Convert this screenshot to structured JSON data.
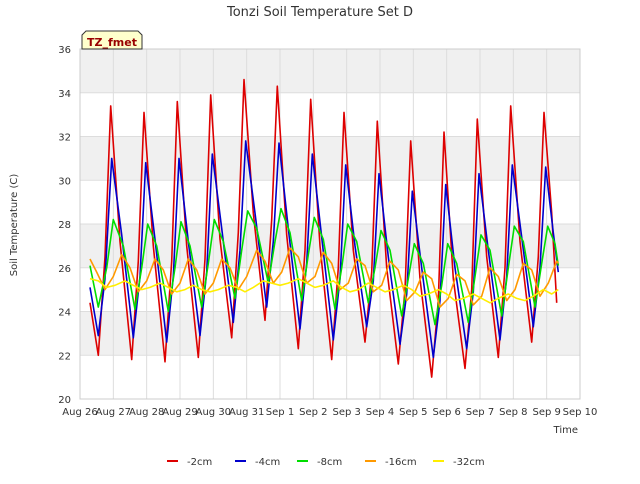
{
  "chart_data": {
    "type": "line",
    "title": "Tonzi Soil Temperature Set D",
    "xlabel": "Time",
    "ylabel": "Soil Temperature (C)",
    "badge": "TZ_fmet",
    "xlim": [
      0,
      15
    ],
    "ylim": [
      20,
      36
    ],
    "yticks": [
      20,
      22,
      24,
      26,
      28,
      30,
      32,
      34,
      36
    ],
    "xticks": [
      {
        "x": 0,
        "label": "Aug 26"
      },
      {
        "x": 1,
        "label": "Aug 27"
      },
      {
        "x": 2,
        "label": "Aug 28"
      },
      {
        "x": 3,
        "label": "Aug 29"
      },
      {
        "x": 4,
        "label": "Aug 30"
      },
      {
        "x": 5,
        "label": "Aug 31"
      },
      {
        "x": 6,
        "label": "Sep 1"
      },
      {
        "x": 7,
        "label": "Sep 2"
      },
      {
        "x": 8,
        "label": "Sep 3"
      },
      {
        "x": 9,
        "label": "Sep 4"
      },
      {
        "x": 10,
        "label": "Sep 5"
      },
      {
        "x": 11,
        "label": "Sep 6"
      },
      {
        "x": 12,
        "label": "Sep 7"
      },
      {
        "x": 13,
        "label": "Sep 8"
      },
      {
        "x": 14,
        "label": "Sep 9"
      },
      {
        "x": 15,
        "label": "Sep 10"
      }
    ],
    "grid": true,
    "legend_position": "bottom",
    "series": [
      {
        "name": "-2cm",
        "color": "#dd0000",
        "points": [
          [
            0.3,
            24.4
          ],
          [
            0.55,
            22.0
          ],
          [
            0.75,
            26.5
          ],
          [
            0.92,
            33.4
          ],
          [
            1.2,
            27.2
          ],
          [
            1.55,
            21.8
          ],
          [
            1.75,
            26.3
          ],
          [
            1.92,
            33.1
          ],
          [
            2.2,
            27.0
          ],
          [
            2.55,
            21.7
          ],
          [
            2.75,
            26.3
          ],
          [
            2.92,
            33.6
          ],
          [
            3.2,
            27.0
          ],
          [
            3.55,
            21.9
          ],
          [
            3.75,
            26.4
          ],
          [
            3.92,
            33.9
          ],
          [
            4.2,
            27.3
          ],
          [
            4.55,
            22.8
          ],
          [
            4.75,
            27.6
          ],
          [
            4.92,
            34.6
          ],
          [
            5.2,
            28.5
          ],
          [
            5.55,
            23.6
          ],
          [
            5.75,
            28.2
          ],
          [
            5.92,
            34.3
          ],
          [
            6.2,
            27.5
          ],
          [
            6.55,
            22.3
          ],
          [
            6.75,
            26.8
          ],
          [
            6.92,
            33.7
          ],
          [
            7.2,
            27.0
          ],
          [
            7.55,
            21.8
          ],
          [
            7.75,
            26.0
          ],
          [
            7.92,
            33.1
          ],
          [
            8.2,
            26.8
          ],
          [
            8.55,
            22.6
          ],
          [
            8.75,
            25.8
          ],
          [
            8.92,
            32.7
          ],
          [
            9.2,
            26.0
          ],
          [
            9.55,
            21.6
          ],
          [
            9.75,
            25.0
          ],
          [
            9.92,
            31.8
          ],
          [
            10.2,
            25.5
          ],
          [
            10.55,
            21.0
          ],
          [
            10.75,
            24.5
          ],
          [
            10.92,
            32.2
          ],
          [
            11.2,
            25.5
          ],
          [
            11.55,
            21.4
          ],
          [
            11.75,
            25.0
          ],
          [
            11.92,
            32.8
          ],
          [
            12.2,
            26.5
          ],
          [
            12.55,
            21.9
          ],
          [
            12.75,
            26.0
          ],
          [
            12.92,
            33.4
          ],
          [
            13.2,
            27.2
          ],
          [
            13.55,
            22.6
          ],
          [
            13.75,
            26.5
          ],
          [
            13.92,
            33.1
          ],
          [
            14.15,
            28.5
          ],
          [
            14.3,
            24.4
          ]
        ]
      },
      {
        "name": "-4cm",
        "color": "#0000cc",
        "points": [
          [
            0.3,
            25.1
          ],
          [
            0.55,
            22.9
          ],
          [
            0.75,
            25.5
          ],
          [
            0.95,
            31.0
          ],
          [
            1.25,
            27.5
          ],
          [
            1.6,
            22.8
          ],
          [
            1.8,
            25.6
          ],
          [
            1.97,
            30.8
          ],
          [
            2.25,
            27.3
          ],
          [
            2.6,
            22.6
          ],
          [
            2.8,
            25.6
          ],
          [
            2.97,
            31.0
          ],
          [
            3.25,
            27.2
          ],
          [
            3.6,
            22.9
          ],
          [
            3.8,
            25.8
          ],
          [
            3.97,
            31.2
          ],
          [
            4.25,
            27.8
          ],
          [
            4.6,
            23.5
          ],
          [
            4.8,
            26.8
          ],
          [
            4.97,
            31.8
          ],
          [
            5.25,
            28.5
          ],
          [
            5.6,
            24.2
          ],
          [
            5.8,
            27.2
          ],
          [
            5.97,
            31.7
          ],
          [
            6.25,
            27.8
          ],
          [
            6.6,
            23.2
          ],
          [
            6.8,
            26.2
          ],
          [
            6.97,
            31.2
          ],
          [
            7.25,
            27.4
          ],
          [
            7.6,
            22.7
          ],
          [
            7.8,
            25.5
          ],
          [
            7.97,
            30.7
          ],
          [
            8.25,
            27.0
          ],
          [
            8.6,
            23.3
          ],
          [
            8.8,
            25.4
          ],
          [
            8.97,
            30.3
          ],
          [
            9.25,
            26.5
          ],
          [
            9.6,
            22.5
          ],
          [
            9.8,
            24.8
          ],
          [
            9.97,
            29.5
          ],
          [
            10.25,
            26.0
          ],
          [
            10.6,
            21.9
          ],
          [
            10.8,
            24.5
          ],
          [
            10.97,
            29.8
          ],
          [
            11.25,
            26.0
          ],
          [
            11.6,
            22.3
          ],
          [
            11.8,
            24.9
          ],
          [
            11.97,
            30.3
          ],
          [
            12.25,
            26.8
          ],
          [
            12.6,
            22.7
          ],
          [
            12.8,
            25.6
          ],
          [
            12.97,
            30.7
          ],
          [
            13.25,
            27.4
          ],
          [
            13.6,
            23.3
          ],
          [
            13.8,
            26.0
          ],
          [
            13.97,
            30.6
          ],
          [
            14.2,
            27.6
          ],
          [
            14.35,
            25.8
          ]
        ]
      },
      {
        "name": "-8cm",
        "color": "#00dd00",
        "points": [
          [
            0.3,
            26.1
          ],
          [
            0.55,
            24.2
          ],
          [
            0.8,
            26.0
          ],
          [
            1.0,
            28.2
          ],
          [
            1.3,
            27.0
          ],
          [
            1.65,
            24.1
          ],
          [
            1.85,
            26.0
          ],
          [
            2.03,
            28.0
          ],
          [
            2.3,
            27.0
          ],
          [
            2.65,
            24.0
          ],
          [
            2.85,
            26.0
          ],
          [
            3.03,
            28.1
          ],
          [
            3.3,
            27.0
          ],
          [
            3.65,
            24.2
          ],
          [
            3.85,
            26.2
          ],
          [
            4.03,
            28.2
          ],
          [
            4.3,
            27.2
          ],
          [
            4.65,
            24.6
          ],
          [
            4.85,
            26.8
          ],
          [
            5.03,
            28.6
          ],
          [
            5.3,
            27.8
          ],
          [
            5.65,
            25.3
          ],
          [
            5.85,
            27.2
          ],
          [
            6.03,
            28.7
          ],
          [
            6.3,
            27.6
          ],
          [
            6.65,
            24.5
          ],
          [
            6.85,
            26.6
          ],
          [
            7.03,
            28.3
          ],
          [
            7.3,
            27.3
          ],
          [
            7.65,
            24.1
          ],
          [
            7.85,
            26.0
          ],
          [
            8.03,
            28.0
          ],
          [
            8.3,
            27.2
          ],
          [
            8.65,
            24.4
          ],
          [
            8.85,
            26.0
          ],
          [
            9.03,
            27.7
          ],
          [
            9.3,
            26.8
          ],
          [
            9.65,
            23.8
          ],
          [
            9.85,
            25.5
          ],
          [
            10.03,
            27.1
          ],
          [
            10.3,
            26.2
          ],
          [
            10.65,
            23.4
          ],
          [
            10.85,
            25.2
          ],
          [
            11.03,
            27.1
          ],
          [
            11.3,
            26.2
          ],
          [
            11.65,
            23.5
          ],
          [
            11.85,
            25.6
          ],
          [
            12.03,
            27.5
          ],
          [
            12.3,
            26.8
          ],
          [
            12.65,
            23.8
          ],
          [
            12.85,
            26.0
          ],
          [
            13.03,
            27.9
          ],
          [
            13.3,
            27.2
          ],
          [
            13.65,
            24.2
          ],
          [
            13.85,
            26.2
          ],
          [
            14.03,
            27.9
          ],
          [
            14.25,
            27.1
          ],
          [
            14.35,
            26.1
          ]
        ]
      },
      {
        "name": "-16cm",
        "color": "#ff9900",
        "points": [
          [
            0.3,
            26.4
          ],
          [
            0.5,
            25.8
          ],
          [
            0.75,
            25.0
          ],
          [
            1.0,
            25.6
          ],
          [
            1.25,
            26.6
          ],
          [
            1.5,
            26.0
          ],
          [
            1.75,
            24.9
          ],
          [
            2.0,
            25.4
          ],
          [
            2.25,
            26.4
          ],
          [
            2.5,
            25.9
          ],
          [
            2.75,
            24.8
          ],
          [
            3.0,
            25.3
          ],
          [
            3.25,
            26.4
          ],
          [
            3.5,
            25.9
          ],
          [
            3.75,
            24.8
          ],
          [
            4.0,
            25.3
          ],
          [
            4.25,
            26.4
          ],
          [
            4.5,
            26.0
          ],
          [
            4.75,
            25.0
          ],
          [
            5.0,
            25.6
          ],
          [
            5.3,
            26.8
          ],
          [
            5.55,
            26.3
          ],
          [
            5.8,
            25.3
          ],
          [
            6.05,
            25.8
          ],
          [
            6.3,
            26.9
          ],
          [
            6.55,
            26.5
          ],
          [
            6.8,
            25.3
          ],
          [
            7.05,
            25.6
          ],
          [
            7.3,
            26.7
          ],
          [
            7.55,
            26.2
          ],
          [
            7.8,
            25.0
          ],
          [
            8.05,
            25.3
          ],
          [
            8.3,
            26.4
          ],
          [
            8.55,
            26.1
          ],
          [
            8.8,
            24.9
          ],
          [
            9.05,
            25.2
          ],
          [
            9.3,
            26.3
          ],
          [
            9.55,
            25.9
          ],
          [
            9.8,
            24.5
          ],
          [
            10.05,
            24.9
          ],
          [
            10.3,
            25.8
          ],
          [
            10.55,
            25.5
          ],
          [
            10.8,
            24.2
          ],
          [
            11.05,
            24.6
          ],
          [
            11.3,
            25.7
          ],
          [
            11.55,
            25.4
          ],
          [
            11.8,
            24.3
          ],
          [
            12.05,
            24.7
          ],
          [
            12.3,
            26.0
          ],
          [
            12.55,
            25.6
          ],
          [
            12.8,
            24.5
          ],
          [
            13.05,
            25.0
          ],
          [
            13.3,
            26.2
          ],
          [
            13.55,
            25.9
          ],
          [
            13.8,
            24.7
          ],
          [
            14.05,
            25.3
          ],
          [
            14.3,
            26.3
          ],
          [
            14.35,
            26.2
          ]
        ]
      },
      {
        "name": "-32cm",
        "color": "#ffee00",
        "points": [
          [
            0.3,
            25.5
          ],
          [
            0.55,
            25.4
          ],
          [
            0.8,
            25.1
          ],
          [
            1.05,
            25.2
          ],
          [
            1.35,
            25.4
          ],
          [
            1.6,
            25.2
          ],
          [
            1.85,
            25.0
          ],
          [
            2.1,
            25.1
          ],
          [
            2.4,
            25.3
          ],
          [
            2.65,
            25.1
          ],
          [
            2.9,
            24.9
          ],
          [
            3.15,
            25.0
          ],
          [
            3.4,
            25.2
          ],
          [
            3.65,
            25.0
          ],
          [
            3.9,
            24.9
          ],
          [
            4.15,
            25.0
          ],
          [
            4.45,
            25.2
          ],
          [
            4.7,
            25.1
          ],
          [
            4.95,
            24.9
          ],
          [
            5.2,
            25.1
          ],
          [
            5.5,
            25.4
          ],
          [
            5.75,
            25.3
          ],
          [
            6.0,
            25.2
          ],
          [
            6.25,
            25.3
          ],
          [
            6.55,
            25.5
          ],
          [
            6.8,
            25.3
          ],
          [
            7.05,
            25.1
          ],
          [
            7.3,
            25.2
          ],
          [
            7.6,
            25.4
          ],
          [
            7.85,
            25.1
          ],
          [
            8.1,
            24.9
          ],
          [
            8.35,
            25.0
          ],
          [
            8.65,
            25.3
          ],
          [
            8.9,
            25.1
          ],
          [
            9.15,
            24.9
          ],
          [
            9.4,
            25.0
          ],
          [
            9.7,
            25.2
          ],
          [
            9.95,
            25.0
          ],
          [
            10.2,
            24.7
          ],
          [
            10.45,
            24.8
          ],
          [
            10.75,
            25.0
          ],
          [
            11.0,
            24.8
          ],
          [
            11.25,
            24.5
          ],
          [
            11.5,
            24.6
          ],
          [
            11.8,
            24.8
          ],
          [
            12.05,
            24.6
          ],
          [
            12.3,
            24.4
          ],
          [
            12.55,
            24.6
          ],
          [
            12.85,
            24.8
          ],
          [
            13.1,
            24.6
          ],
          [
            13.35,
            24.5
          ],
          [
            13.6,
            24.7
          ],
          [
            13.9,
            25.0
          ],
          [
            14.15,
            24.8
          ],
          [
            14.35,
            25.0
          ]
        ]
      }
    ]
  }
}
